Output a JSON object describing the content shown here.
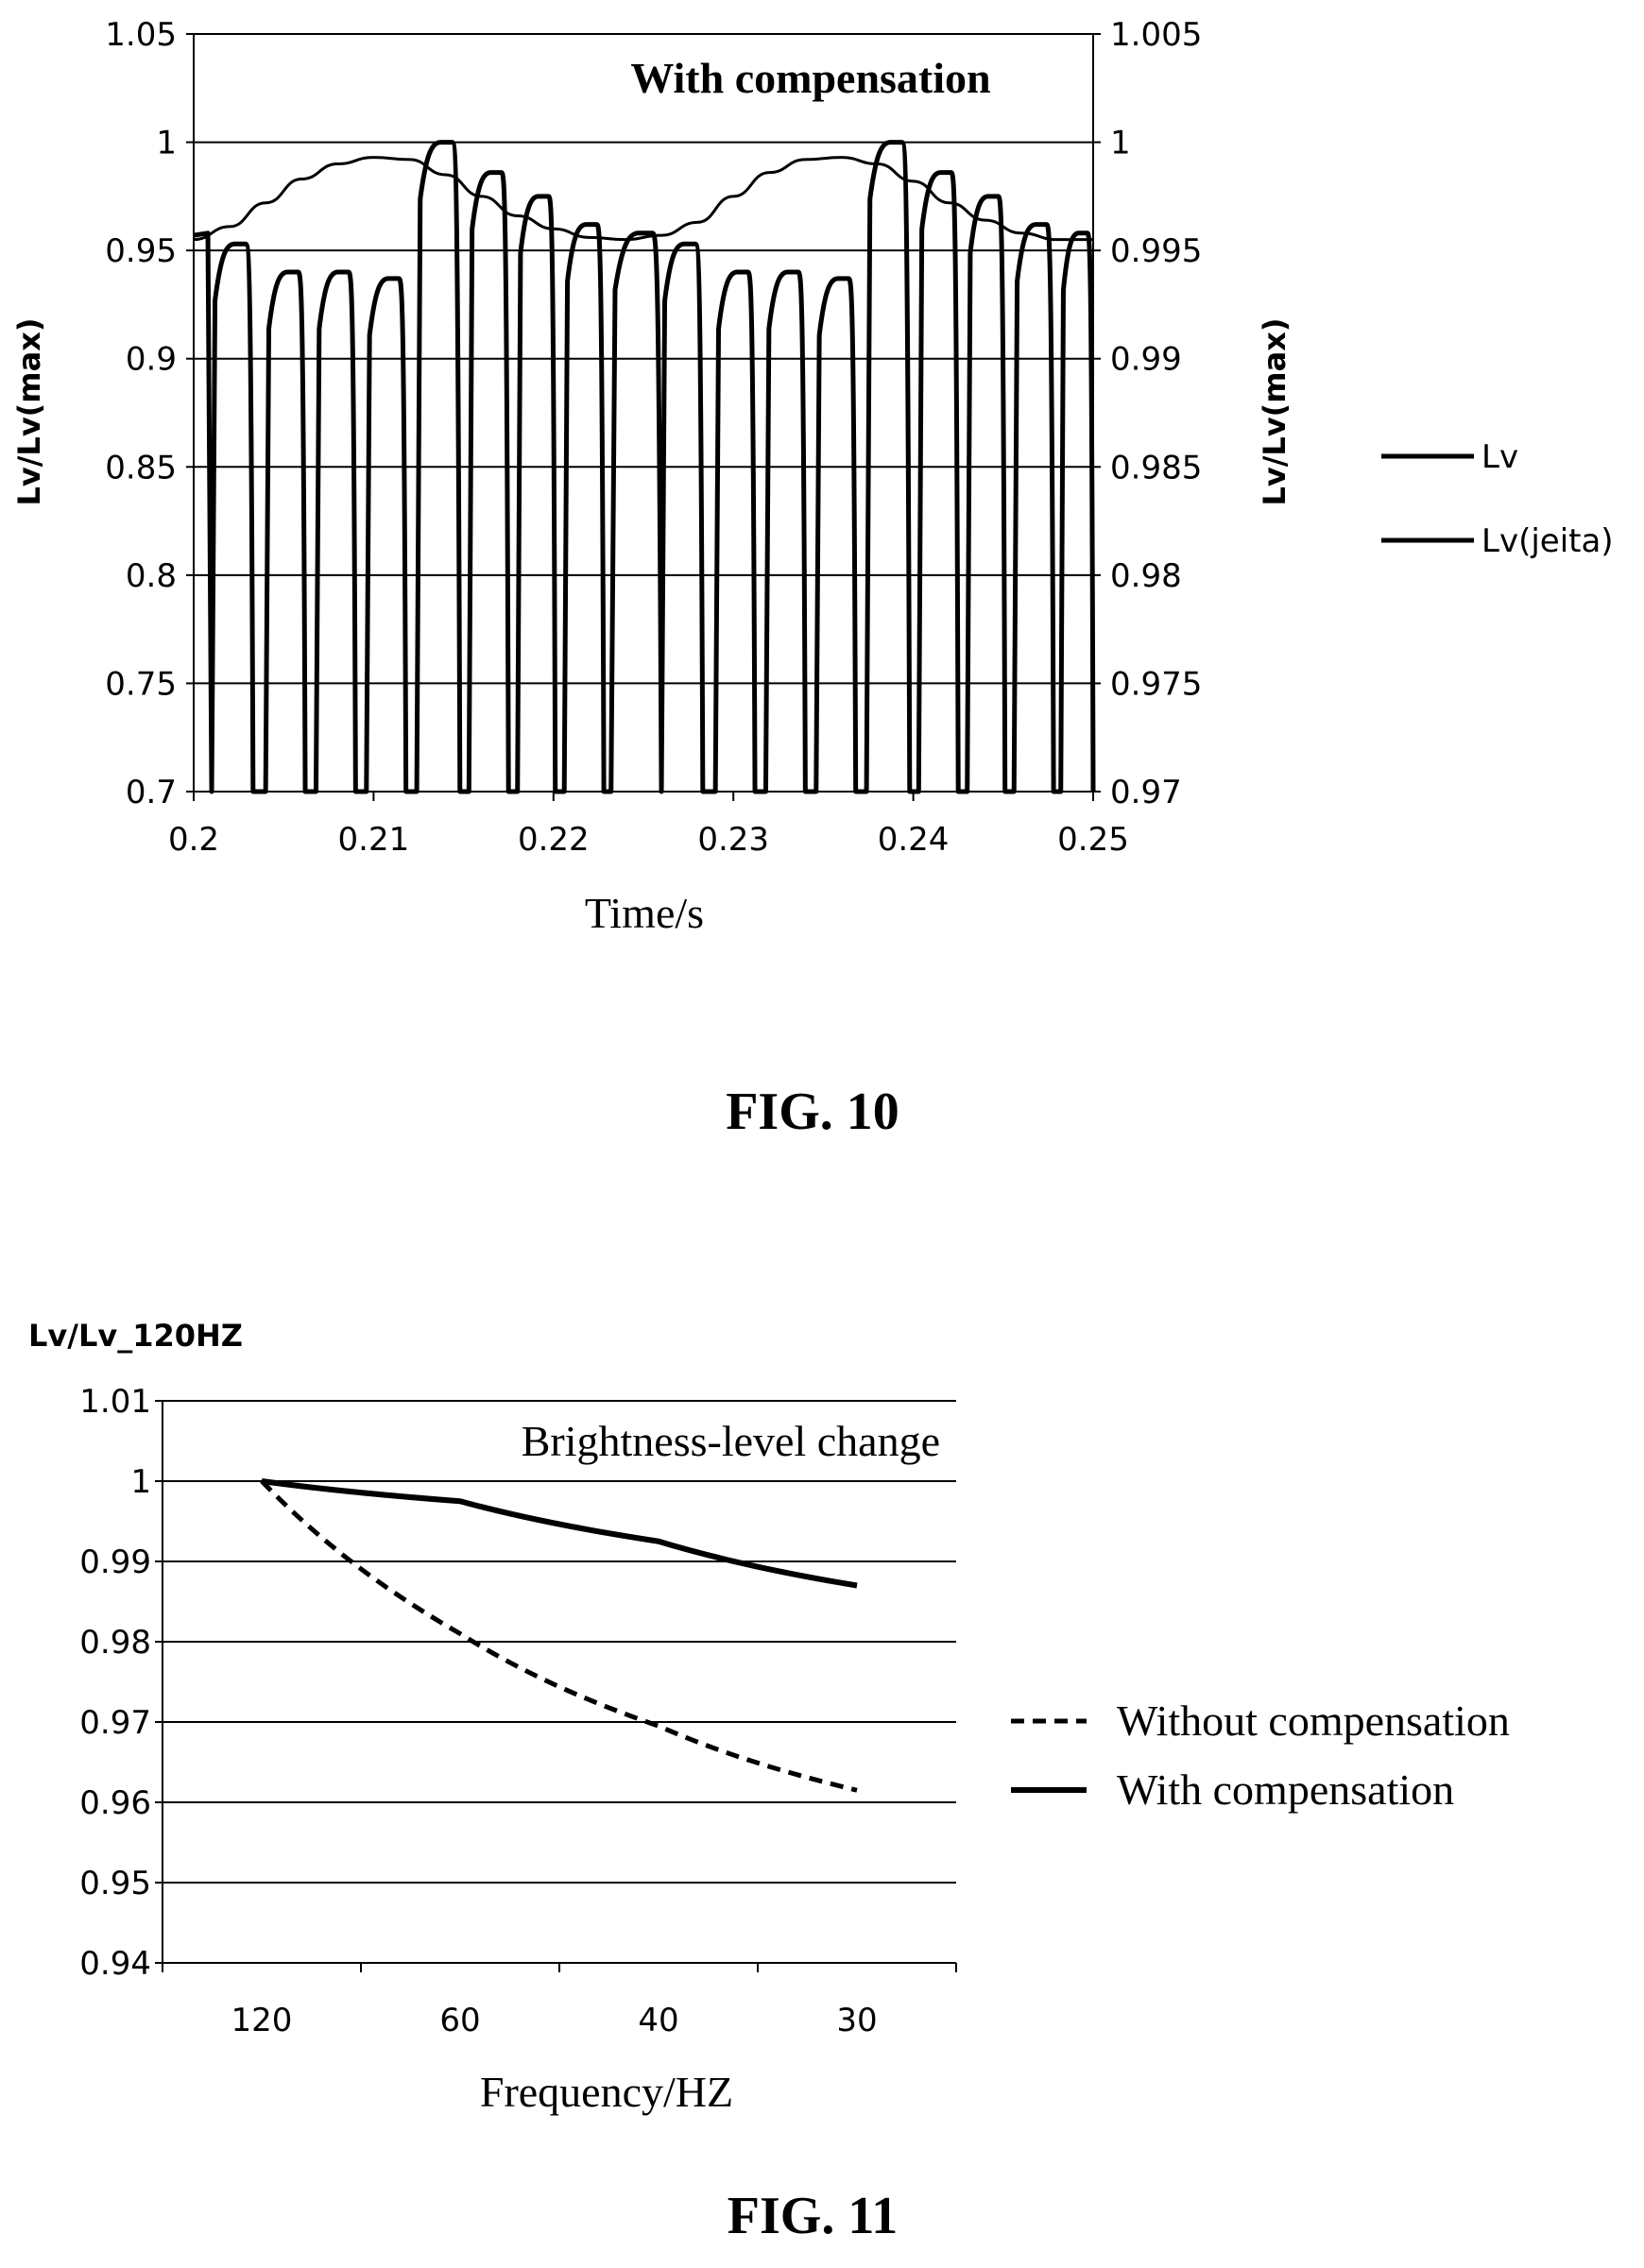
{
  "chart_data": [
    {
      "type": "line",
      "figure_label": "FIG. 10",
      "annotation": "With compensation",
      "xlabel": "Time/s",
      "ylabel": "Lv/Lv(max)",
      "ylabel_right": "Lv/Lv(max)",
      "xlim": [
        0.2,
        0.25
      ],
      "ylim": [
        0.7,
        1.05
      ],
      "ylim_right": [
        0.97,
        1.005
      ],
      "x_ticks": [
        "0.2",
        "0.21",
        "0.22",
        "0.23",
        "0.24",
        "0.25"
      ],
      "y_ticks": [
        "0.7",
        "0.75",
        "0.8",
        "0.85",
        "0.9",
        "0.95",
        "1",
        "1.05"
      ],
      "y_ticks_right": [
        "0.97",
        "0.975",
        "0.98",
        "0.985",
        "0.99",
        "0.995",
        "1",
        "1.005"
      ],
      "grid": true,
      "legend_position": "right",
      "series": [
        {
          "name": "Lv",
          "axis": "left",
          "frame_period": 0.025,
          "frame_start": 0.201,
          "pulses": [
            {
              "start": 0.0,
              "end": 0.0023,
              "level": 0.953
            },
            {
              "start": 0.003,
              "end": 0.0052,
              "level": 0.94
            },
            {
              "start": 0.0058,
              "end": 0.008,
              "level": 0.94
            },
            {
              "start": 0.0086,
              "end": 0.0108,
              "level": 0.937
            },
            {
              "start": 0.0114,
              "end": 0.0138,
              "level": 1.0
            },
            {
              "start": 0.0143,
              "end": 0.0165,
              "level": 0.986
            },
            {
              "start": 0.017,
              "end": 0.0191,
              "level": 0.975
            },
            {
              "start": 0.0196,
              "end": 0.0218,
              "level": 0.962
            },
            {
              "start": 0.0222,
              "end": 0.025,
              "level": 0.958
            }
          ]
        },
        {
          "name": "Lv(jeita)",
          "axis": "right",
          "x": [
            0.2,
            0.202,
            0.204,
            0.206,
            0.208,
            0.21,
            0.212,
            0.214,
            0.216,
            0.218,
            0.22,
            0.222,
            0.224,
            0.226,
            0.228,
            0.23,
            0.232,
            0.234,
            0.236,
            0.238,
            0.24,
            0.242,
            0.244,
            0.246,
            0.248,
            0.25
          ],
          "values": [
            0.9955,
            0.9961,
            0.9972,
            0.9983,
            0.999,
            0.9993,
            0.9992,
            0.9985,
            0.9975,
            0.9966,
            0.996,
            0.9956,
            0.9955,
            0.9957,
            0.9963,
            0.9975,
            0.9986,
            0.9992,
            0.9993,
            0.999,
            0.9982,
            0.9972,
            0.9964,
            0.9958,
            0.9955,
            0.9955
          ]
        }
      ],
      "legend": [
        "Lv",
        "Lv(jeita)"
      ]
    },
    {
      "type": "line",
      "figure_label": "FIG. 11",
      "annotation": "Brightness-level change",
      "xlabel": "Frequency/HZ",
      "ylabel": "Lv/Lv_120HZ",
      "ylim": [
        0.94,
        1.01
      ],
      "categories": [
        "120",
        "60",
        "40",
        "30"
      ],
      "y_ticks": [
        "0.94",
        "0.95",
        "0.96",
        "0.97",
        "0.98",
        "0.99",
        "1",
        "1.01"
      ],
      "grid": true,
      "legend_position": "right",
      "series": [
        {
          "name": "Without compensation",
          "style": "dashed",
          "values": [
            1.0,
            0.981,
            0.9695,
            0.9615
          ]
        },
        {
          "name": "With compensation",
          "style": "solid",
          "values": [
            1.0,
            0.9975,
            0.9925,
            0.987
          ]
        }
      ],
      "legend": [
        "Without compensation",
        "With compensation"
      ]
    }
  ]
}
